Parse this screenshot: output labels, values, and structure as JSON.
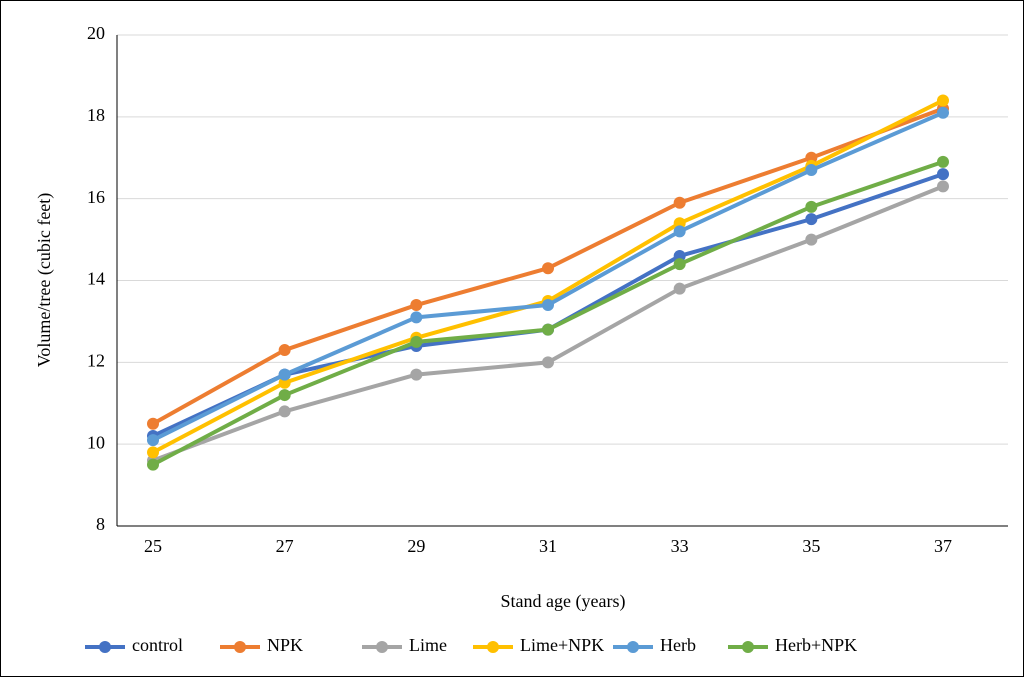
{
  "chart_data": {
    "type": "line",
    "x_label": "Stand age (years)",
    "y_label": "Volume/tree (cubic feet)",
    "categories": [
      "25",
      "27",
      "29",
      "31",
      "33",
      "35",
      "37"
    ],
    "series": [
      {
        "name": "control",
        "color": "#4472c4",
        "values": [
          10.2,
          11.7,
          12.4,
          12.8,
          14.6,
          15.5,
          16.6
        ]
      },
      {
        "name": "NPK",
        "color": "#ed7d31",
        "values": [
          10.5,
          12.3,
          13.4,
          14.3,
          15.9,
          17.0,
          18.2
        ]
      },
      {
        "name": "Lime",
        "color": "#a5a5a5",
        "values": [
          9.6,
          10.8,
          11.7,
          12.0,
          13.8,
          15.0,
          16.3
        ]
      },
      {
        "name": "Lime+NPK",
        "color": "#ffc000",
        "values": [
          9.8,
          11.5,
          12.6,
          13.5,
          15.4,
          16.8,
          18.4
        ]
      },
      {
        "name": "Herb",
        "color": "#5b9bd5",
        "values": [
          10.1,
          11.7,
          13.1,
          13.4,
          15.2,
          16.7,
          18.1
        ]
      },
      {
        "name": "Herb+NPK",
        "color": "#70ad47",
        "values": [
          9.5,
          11.2,
          12.5,
          12.8,
          14.4,
          15.8,
          16.9
        ]
      }
    ],
    "ylim": [
      8,
      20
    ],
    "yticks": [
      8,
      10,
      12,
      14,
      16,
      18,
      20
    ],
    "grid": true,
    "legend": "bottom"
  }
}
